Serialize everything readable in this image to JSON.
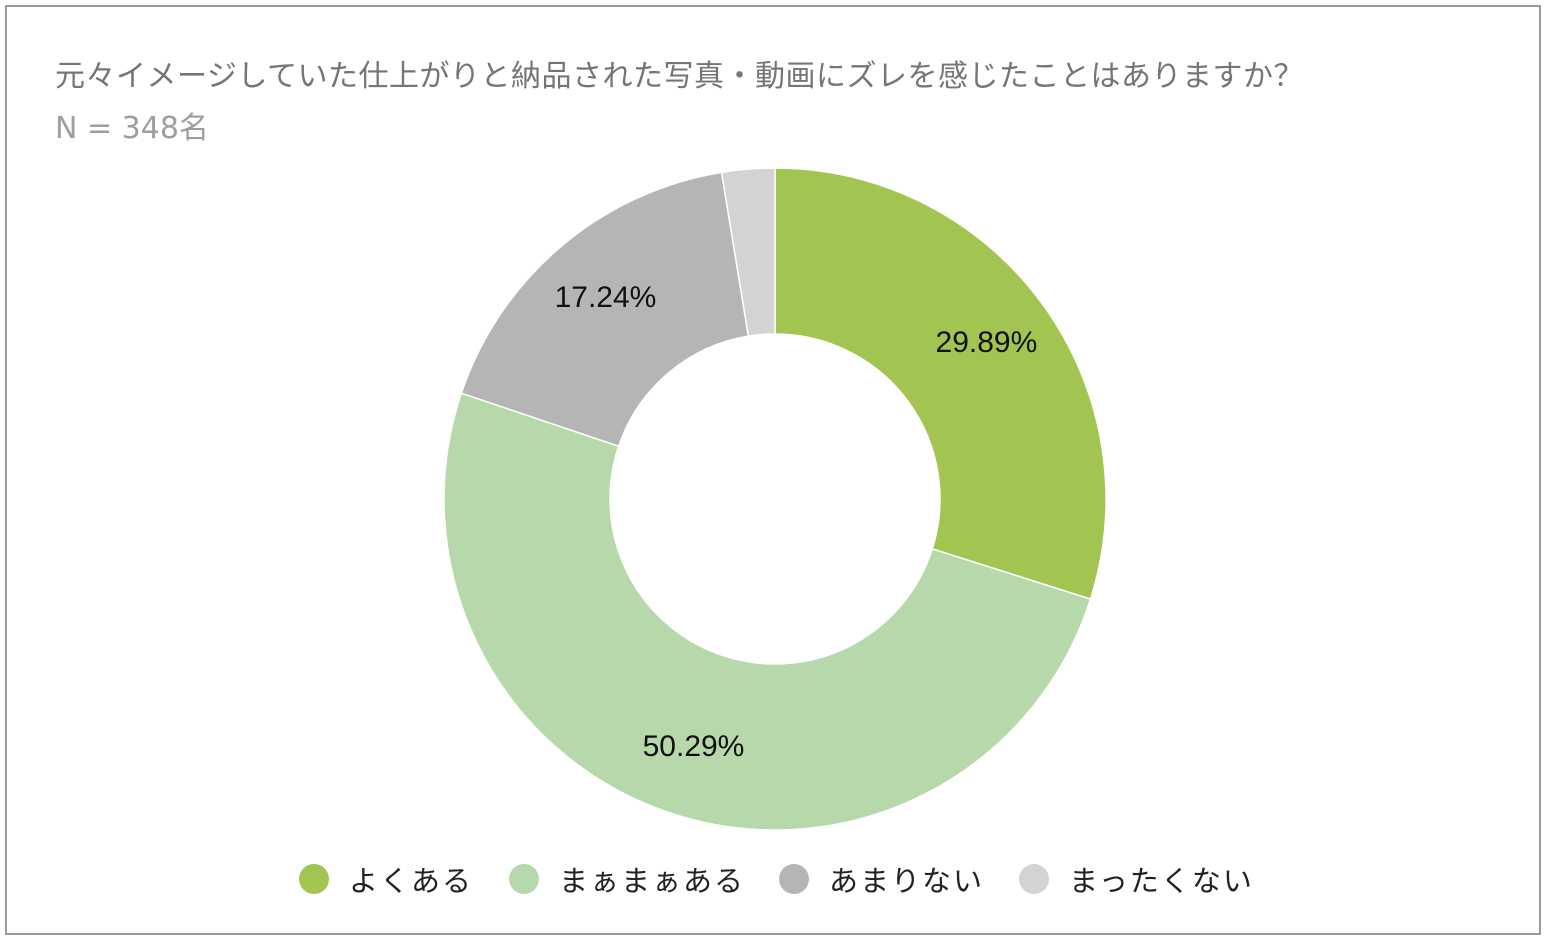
{
  "chart_data": {
    "type": "pie",
    "title": "元々イメージしていた仕上がりと納品された写真・動画にズレを感じたことはありますか？",
    "subtitle": "N = 348名",
    "slices": [
      {
        "name": "よくある",
        "value": 29.89,
        "label": "29.89%",
        "color": "#a1c550"
      },
      {
        "name": "まぁまぁある",
        "value": 50.29,
        "label": "50.29%",
        "color": "#b7d8aa"
      },
      {
        "name": "あまりない",
        "value": 17.24,
        "label": "17.24%",
        "color": "#b5b5b5"
      },
      {
        "name": "まったくない",
        "value": 2.58,
        "label": "",
        "color": "#d3d3d3"
      }
    ],
    "donut": true,
    "legend_position": "bottom"
  }
}
